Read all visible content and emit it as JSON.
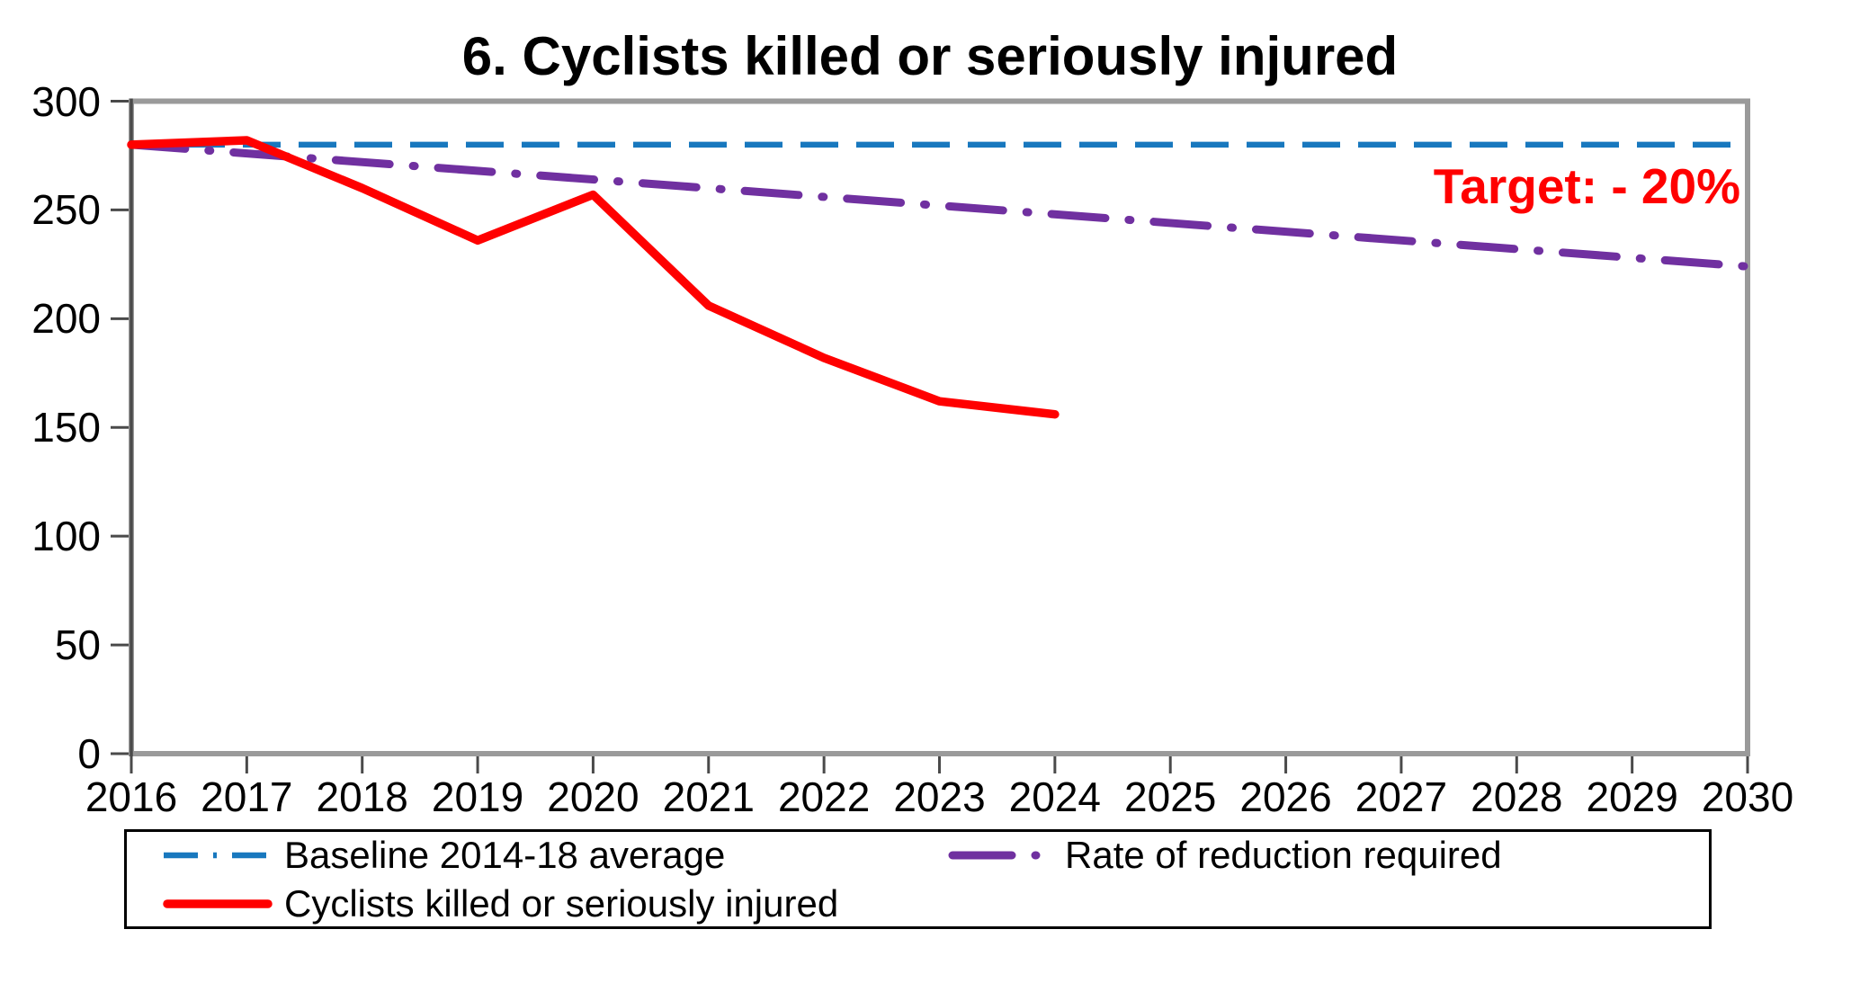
{
  "title": "6. Cyclists killed or seriously injured",
  "annotation": {
    "text": "Target: - 20%",
    "color": "#FF0000"
  },
  "colors": {
    "baseline_blue": "#1878BE",
    "required_purple": "#7030A0",
    "actual_red": "#FF0000",
    "plot_frame_gray": "#9A9A9A",
    "axis_tick_dark": "#4A4A4A",
    "text_black": "#000000",
    "legend_border": "#000000"
  },
  "legend": {
    "entries": [
      {
        "label": "Baseline 2014-18 average"
      },
      {
        "label": "Rate of reduction required"
      },
      {
        "label": "Cyclists killed or seriously injured"
      }
    ]
  },
  "chart_data": {
    "type": "line",
    "title": "6. Cyclists killed or seriously injured",
    "xlabel": "",
    "ylabel": "",
    "grid": false,
    "legend_position": "bottom",
    "x_axis": {
      "range": [
        2016,
        2030
      ],
      "ticks": [
        2016,
        2017,
        2018,
        2019,
        2020,
        2021,
        2022,
        2023,
        2024,
        2025,
        2026,
        2027,
        2028,
        2029,
        2030
      ]
    },
    "y_axis": {
      "range": [
        0,
        300
      ],
      "ticks": [
        0,
        50,
        100,
        150,
        200,
        250,
        300
      ]
    },
    "series": [
      {
        "name": "Baseline 2014-18 average",
        "color": "#1878BE",
        "style": "dashed",
        "points": [
          [
            2016,
            280
          ],
          [
            2030,
            280
          ]
        ]
      },
      {
        "name": "Rate of reduction required",
        "color": "#7030A0",
        "style": "dashdot",
        "points": [
          [
            2016,
            280
          ],
          [
            2030,
            224
          ]
        ]
      },
      {
        "name": "Cyclists killed or seriously injured",
        "color": "#FF0000",
        "style": "solid",
        "points": [
          [
            2016,
            280
          ],
          [
            2017,
            282
          ],
          [
            2018,
            260
          ],
          [
            2019,
            236
          ],
          [
            2020,
            257
          ],
          [
            2021,
            206
          ],
          [
            2022,
            182
          ],
          [
            2023,
            162
          ],
          [
            2024,
            156
          ]
        ]
      }
    ],
    "target_annotation": "Target: - 20%",
    "target_percent_reduction": 20,
    "baseline_value": 280,
    "required_2030_value": 224
  }
}
